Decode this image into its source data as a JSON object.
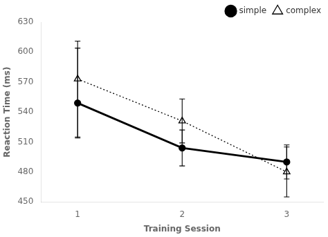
{
  "chart_data": {
    "type": "line",
    "x": [
      1,
      2,
      3
    ],
    "series": [
      {
        "name": "simple",
        "color": "black",
        "marker": "circle",
        "line_style": "solid",
        "values": [
          549,
          504,
          490
        ],
        "yerr_lower": [
          35,
          18,
          17
        ],
        "yerr_upper": [
          55,
          18,
          17
        ]
      },
      {
        "name": "complex",
        "color": "black",
        "marker": "triangle",
        "line_style": "dotted",
        "values": [
          573,
          531,
          480
        ],
        "yerr_lower": [
          58,
          22,
          25
        ],
        "yerr_upper": [
          38,
          22,
          25
        ]
      }
    ],
    "xlabel": "Training Session",
    "ylabel": "Reaction Time (ms)",
    "xlim": [
      0.65,
      3.35
    ],
    "xticks": [
      1,
      2,
      3
    ],
    "ylim": [
      450,
      630
    ],
    "yticks": [
      450,
      480,
      510,
      540,
      570,
      600,
      630
    ],
    "grid": false,
    "legend": "upper right"
  }
}
